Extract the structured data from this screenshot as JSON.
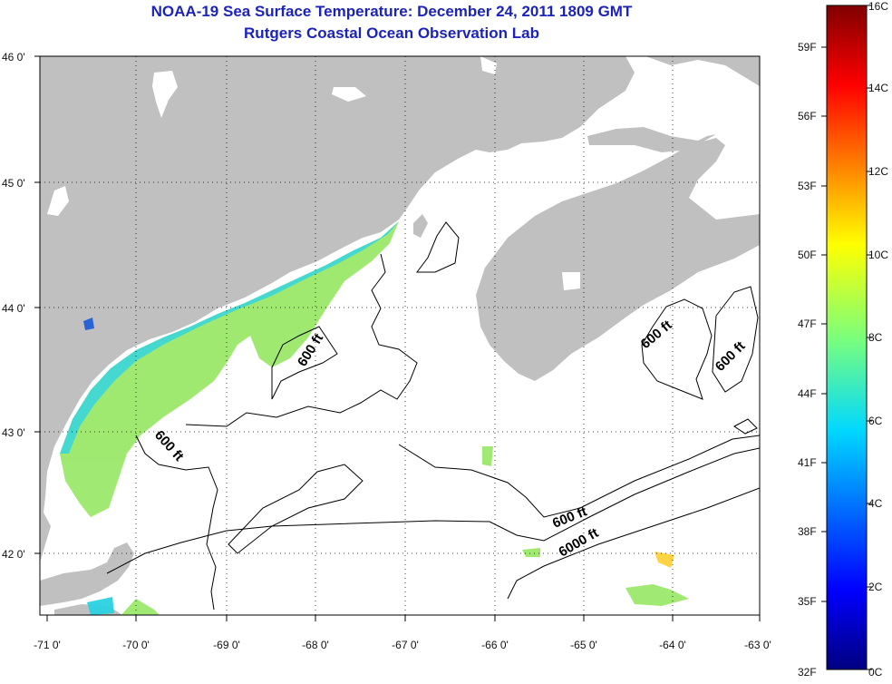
{
  "title_line1": "NOAA-19 Sea Surface Temperature:  December 24, 2011 1809 GMT",
  "title_line2": "Rutgers Coastal Ocean Observation Lab",
  "lat_ticks": [
    "46 0'",
    "45 0'",
    "44 0'",
    "43 0'",
    "42 0'"
  ],
  "lon_ticks": [
    "-71 0'",
    "-70 0'",
    "-69 0'",
    "-68 0'",
    "-67 0'",
    "-66 0'",
    "-65 0'",
    "-64 0'",
    "-63 0'"
  ],
  "contour_labels": [
    "600 ft",
    "600 ft",
    "600 ft",
    "600 ft",
    "600 ft",
    "6000 ft"
  ],
  "colorbar": {
    "fahrenheit": [
      "59F",
      "56F",
      "53F",
      "50F",
      "47F",
      "44F",
      "41F",
      "38F",
      "35F",
      "32F"
    ],
    "celsius": [
      "16C",
      "14C",
      "12C",
      "10C",
      "8C",
      "6C",
      "4C",
      "2C",
      "0C"
    ]
  },
  "colors": {
    "title": "#1c23b8",
    "land": "#c0c0c0",
    "sst_warm_coast": "#9be86a",
    "sst_cool": "#2ad2e0"
  }
}
